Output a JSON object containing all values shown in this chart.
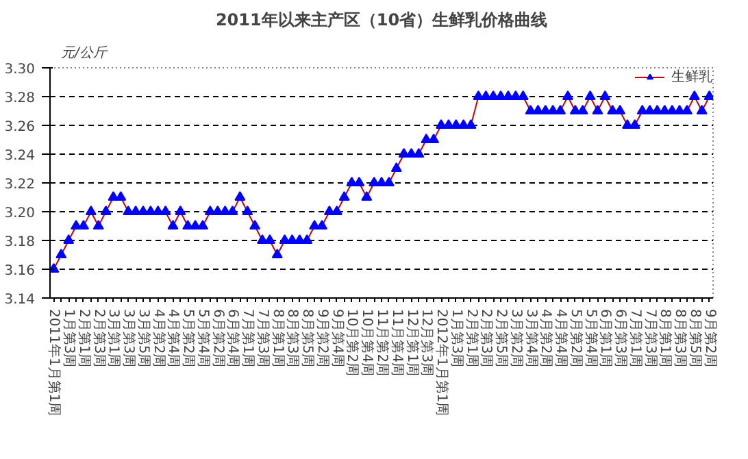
{
  "chart_data": {
    "type": "line",
    "title": "2011年以来主产区（10省）生鲜乳价格曲线",
    "ylabel": "元/公斤",
    "categories": [
      "2011年1月第1周",
      null,
      "1月第3周",
      null,
      "2月第1周",
      null,
      "2月第3周",
      null,
      "3月第1周",
      null,
      "3月第3周",
      null,
      "3月第5周",
      null,
      "4月第2周",
      null,
      "4月第4周",
      null,
      "5月第2周",
      null,
      "5月第4周",
      null,
      "6月第2周",
      null,
      "6月第4周",
      null,
      "7月第1周",
      null,
      "7月第3周",
      null,
      "8月第1周",
      null,
      "8月第3周",
      null,
      "8月第5周",
      null,
      "9月第2周",
      null,
      "9月第4周",
      null,
      "10月第2周",
      null,
      "10月第4周",
      null,
      "11月第2周",
      null,
      "11月第4周",
      null,
      "12月第1周",
      null,
      "12月第3周",
      null,
      "2012年1月第1周",
      null,
      "1月第3周",
      null,
      "2月第1周",
      null,
      "2月第3周",
      null,
      "2月第5周",
      null,
      "3月第2周",
      null,
      "3月第4周",
      null,
      "4月第2周",
      null,
      "4月第4周",
      null,
      "5月第2周",
      null,
      "5月第4周",
      null,
      "6月第1周",
      null,
      "6月第3周",
      null,
      "7月第1周",
      null,
      "7月第3周",
      null,
      "8月第1周",
      null,
      "8月第3周",
      null,
      "8月第5周",
      null,
      "9月第2周"
    ],
    "series": [
      {
        "name": "生鲜乳",
        "color": "#cc0000",
        "colors": [
          "#0000ff",
          "#0000ff",
          "#0000ff",
          "#0000ff",
          "#0000ff",
          "#0000ff",
          "#0000ff",
          "#0000ff",
          "#0000ff",
          "#0000ff",
          "#0000ff",
          "#0000ff",
          "#0000ff",
          "#0000ff",
          "#0000ff",
          "#0000ff",
          "#0000ff",
          "#0000ff",
          "#0000ff",
          "#0000ff",
          "#0000ff",
          "#0000ff",
          "#0000ff",
          "#0000ff",
          "#0000ff",
          "#0000ff",
          "#0000ff",
          "#0000ff",
          "#0000ff",
          "#0000ff",
          "#0000ff",
          "#0000ff",
          "#0000ff",
          "#0000ff",
          "#0000ff",
          "#0000ff",
          "#0000ff",
          "#0000ff",
          "#0000ff",
          "#0000ff",
          "#0000ff",
          "#0000ff",
          "#0000ff",
          "#0000ff",
          "#0000ff",
          "#0000ff",
          "#0000ff",
          "#0000ff",
          "#0000ff",
          "#0000ff",
          "#0000ff",
          "#0000ff",
          "#0000ff",
          "#0000ff",
          "#0000ff",
          "#0000ff",
          "#0000ff",
          "#0000ff",
          "#0000ff",
          "#0000ff",
          "#0000ff",
          "#0000ff",
          "#0000ff",
          "#0000ff",
          "#0000ff",
          "#0000ff",
          "#0000ff",
          "#0000ff",
          "#0000ff",
          "#0000ff",
          "#0000ff",
          "#0000ff",
          "#0000ff",
          "#0000ff",
          "#0000ff",
          "#0000ff",
          "#0000ff",
          "#0000ff",
          "#0000ff",
          "#0000ff",
          "#0000ff",
          "#0000ff",
          "#0000ff",
          "#0000ff",
          "#0000ff",
          "#0000ff",
          "#0000ff",
          "#0000ff",
          "#0000ff"
        ],
        "values": [
          3.16,
          3.17,
          3.18,
          3.19,
          3.19,
          3.2,
          3.19,
          3.2,
          3.21,
          3.21,
          3.2,
          3.2,
          3.2,
          3.2,
          3.2,
          3.2,
          3.19,
          3.2,
          3.19,
          3.19,
          3.19,
          3.2,
          3.2,
          3.2,
          3.2,
          3.21,
          3.2,
          3.19,
          3.18,
          3.18,
          3.17,
          3.18,
          3.18,
          3.18,
          3.18,
          3.19,
          3.19,
          3.2,
          3.2,
          3.21,
          3.22,
          3.22,
          3.21,
          3.22,
          3.22,
          3.22,
          3.23,
          3.24,
          3.24,
          3.24,
          3.25,
          3.25,
          3.26,
          3.26,
          3.26,
          3.26,
          3.26,
          3.28,
          3.28,
          3.28,
          3.28,
          3.28,
          3.28,
          3.28,
          3.27,
          3.27,
          3.27,
          3.27,
          3.27,
          3.28,
          3.27,
          3.27,
          3.28,
          3.27,
          3.28,
          3.27,
          3.27,
          3.26,
          3.26,
          3.27,
          3.27,
          3.27,
          3.27,
          3.27,
          3.27,
          3.27,
          3.28,
          3.27,
          3.28
        ]
      }
    ],
    "ylim": [
      3.14,
      3.3
    ],
    "yticks": [
      3.14,
      3.16,
      3.18,
      {
        "value": 3.2,
        "label": "3.20"
      },
      3.22,
      3.24,
      3.26,
      3.28,
      {
        "value": 3.3,
        "label": "3.30"
      }
    ],
    "grid": "y",
    "legend": "top right",
    "marker": "triangle",
    "line_style": "solid"
  }
}
